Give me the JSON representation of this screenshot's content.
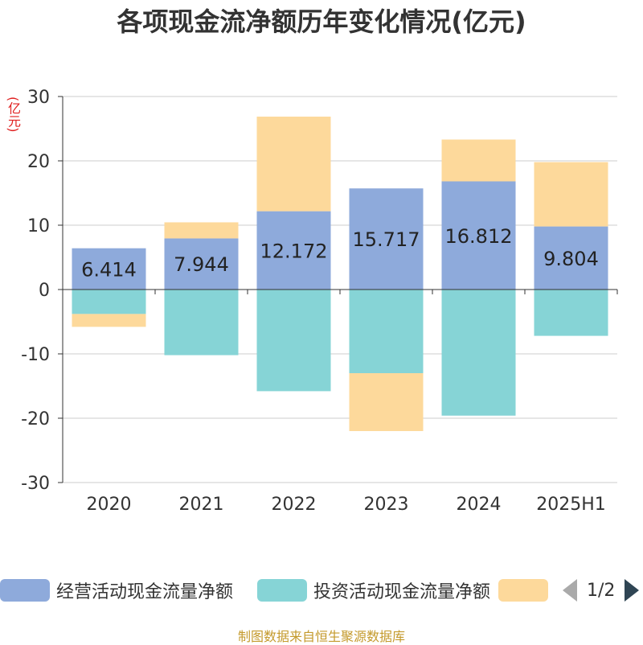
{
  "title": "各项现金流净额历年变化情况(亿元)",
  "unit_label": "(亿元)",
  "source": "制图数据来自恒生聚源数据库",
  "legend_pager": "1/2",
  "colors": {
    "operating": "#8eaadb",
    "investing": "#86d4d6",
    "financing": "#fdd99b",
    "axis": "#333333",
    "grid": "#cccccc"
  },
  "chart_data": {
    "type": "bar",
    "stacked": true,
    "categories": [
      "2020",
      "2021",
      "2022",
      "2023",
      "2024",
      "2025H1"
    ],
    "ylim": [
      -30,
      30
    ],
    "yticks": [
      30,
      20,
      10,
      0,
      -10,
      -20,
      -30
    ],
    "grid": true,
    "legend_position": "bottom",
    "series": [
      {
        "name": "经营活动现金流量净额",
        "color_key": "operating",
        "values": [
          6.414,
          7.944,
          12.172,
          15.717,
          16.812,
          9.804
        ],
        "show_labels": true
      },
      {
        "name": "投资活动现金流量净额",
        "color_key": "investing",
        "values": [
          -3.8,
          -10.2,
          -15.8,
          -13.0,
          -19.6,
          -7.2
        ],
        "show_labels": false
      },
      {
        "name": "",
        "color_key": "financing",
        "values": [
          -2.0,
          2.5,
          14.7,
          -9.0,
          6.5,
          10.0
        ],
        "show_labels": false
      }
    ]
  }
}
